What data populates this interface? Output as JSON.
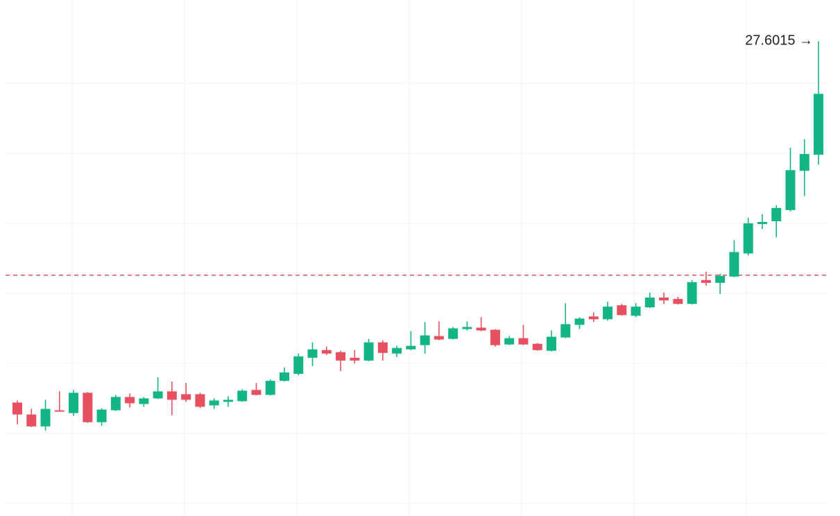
{
  "chart_data": {
    "type": "candlestick",
    "open": [
      22.44,
      22.27,
      22.1,
      22.33,
      22.29,
      22.58,
      22.16,
      22.33,
      22.52,
      22.42,
      22.5,
      22.6,
      22.56,
      22.56,
      22.4,
      22.45,
      22.46,
      22.62,
      22.55,
      22.75,
      22.85,
      23.08,
      23.19,
      23.16,
      23.08,
      23.04,
      23.3,
      23.14,
      23.2,
      23.26,
      23.39,
      23.35,
      23.49,
      23.51,
      23.48,
      23.27,
      23.36,
      23.28,
      23.18,
      23.37,
      23.55,
      23.67,
      23.63,
      23.83,
      23.68,
      23.8,
      23.94,
      23.92,
      23.85,
      24.19,
      24.15,
      24.24,
      24.57,
      24.99,
      25.03,
      25.19,
      25.75,
      25.98
    ],
    "high": [
      22.47,
      22.35,
      22.48,
      22.6,
      22.62,
      22.59,
      22.36,
      22.55,
      22.57,
      22.52,
      22.8,
      22.74,
      22.72,
      22.58,
      22.5,
      22.53,
      22.63,
      22.72,
      22.77,
      22.94,
      23.14,
      23.3,
      23.24,
      23.18,
      23.19,
      23.35,
      23.33,
      23.25,
      23.46,
      23.59,
      23.6,
      23.52,
      23.6,
      23.66,
      23.49,
      23.39,
      23.55,
      23.29,
      23.47,
      23.86,
      23.66,
      23.73,
      23.88,
      23.85,
      23.86,
      24.01,
      24.01,
      23.95,
      24.19,
      24.31,
      24.28,
      24.76,
      25.08,
      25.13,
      25.26,
      26.08,
      26.2,
      27.6015
    ],
    "low": [
      22.13,
      22.09,
      22.04,
      22.31,
      22.25,
      22.15,
      22.11,
      22.32,
      22.37,
      22.38,
      22.49,
      22.26,
      22.45,
      22.36,
      22.35,
      22.38,
      22.45,
      22.54,
      22.54,
      22.74,
      22.83,
      22.96,
      23.12,
      22.89,
      23.0,
      23.03,
      23.04,
      23.09,
      23.19,
      23.14,
      23.33,
      23.34,
      23.47,
      23.46,
      23.24,
      23.26,
      23.26,
      23.18,
      23.17,
      23.36,
      23.49,
      23.59,
      23.61,
      23.68,
      23.66,
      23.79,
      23.85,
      23.84,
      23.84,
      24.11,
      23.99,
      24.23,
      24.54,
      24.92,
      24.8,
      25.17,
      25.39,
      25.84
    ],
    "close": [
      22.27,
      22.1,
      22.35,
      22.31,
      22.58,
      22.16,
      22.34,
      22.52,
      22.43,
      22.5,
      22.6,
      22.48,
      22.48,
      22.38,
      22.47,
      22.48,
      22.61,
      22.55,
      22.75,
      22.87,
      23.1,
      23.2,
      23.14,
      23.04,
      23.04,
      23.3,
      23.15,
      23.22,
      23.25,
      23.4,
      23.34,
      23.5,
      23.52,
      23.47,
      23.26,
      23.36,
      23.27,
      23.19,
      23.38,
      23.56,
      23.64,
      23.63,
      23.81,
      23.69,
      23.81,
      23.94,
      23.9,
      23.85,
      24.16,
      24.15,
      24.25,
      24.59,
      25.0,
      25.02,
      25.22,
      25.76,
      25.99,
      26.85
    ],
    "up_color": "#14b584",
    "down_color": "#e6505f",
    "ylim": [
      20.82,
      28.19
    ],
    "yticks": [
      21,
      22,
      23,
      24,
      25,
      26,
      27
    ],
    "grid": true,
    "tick_labels": false,
    "reference_line": {
      "value": 24.26,
      "color": "#e6505f"
    },
    "annotation": {
      "text": "27.6015 →"
    }
  }
}
